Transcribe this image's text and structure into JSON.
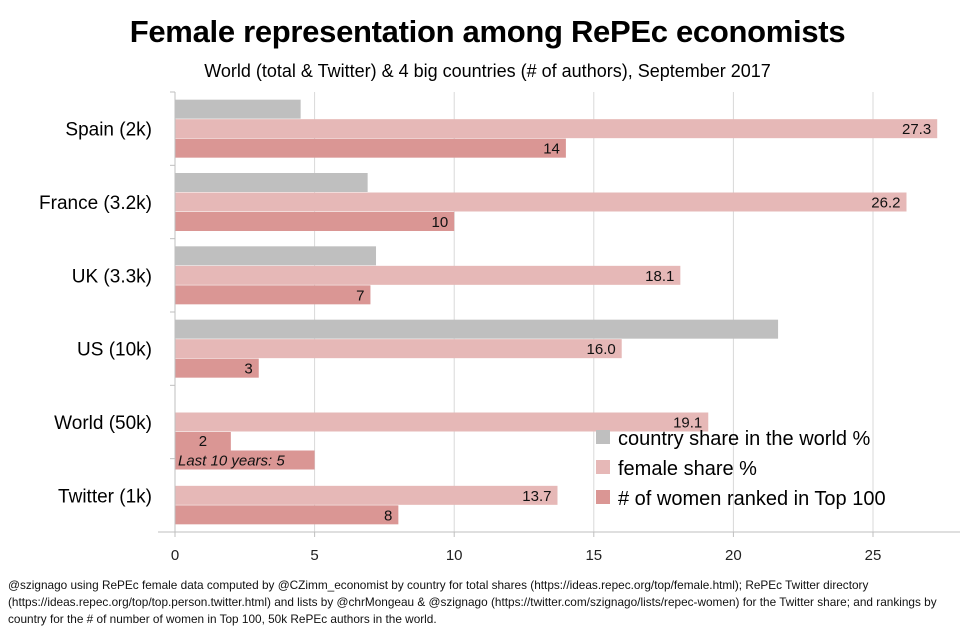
{
  "chart_data": {
    "type": "bar",
    "orientation": "horizontal",
    "title": "Female representation among RePEc economists",
    "subtitle": "World (total & Twitter) & 4 big countries (# of authors), September 2017",
    "categories": [
      "Spain (2k)",
      "France (3.2k)",
      "UK (3.3k)",
      "US (10k)",
      "World (50k)",
      "Twitter (1k)"
    ],
    "series": [
      {
        "name": "country share in the world %",
        "color": "#bfbfbf",
        "values": [
          4.5,
          6.9,
          7.2,
          21.6,
          null,
          null
        ],
        "labels": [
          null,
          null,
          null,
          null,
          null,
          null
        ]
      },
      {
        "name": "female share %",
        "color": "#e6b8b7",
        "values": [
          27.3,
          26.2,
          18.1,
          16.0,
          19.1,
          13.7
        ],
        "labels": [
          "27.3",
          "26.2",
          "18.1",
          "16.0",
          "19.1",
          "13.7"
        ]
      },
      {
        "name": "# of women ranked in Top 100",
        "color": "#da9694",
        "values": [
          14,
          10,
          7,
          3,
          2,
          8
        ],
        "labels": [
          "14",
          "10",
          "7",
          "3",
          "2",
          "8"
        ]
      }
    ],
    "annotations": [
      {
        "category": "World (50k)",
        "text": "Last 10 years: 5",
        "value": 5,
        "style": "italic"
      }
    ],
    "xlabel": "",
    "ylabel": "",
    "xlim": [
      0,
      28
    ],
    "xticks": [
      0,
      5,
      10,
      15,
      20,
      25
    ],
    "grid": true,
    "legend_position": "bottom-right"
  },
  "footnote": "@szignago using RePEc female data computed by @CZimm_economist by country for total shares (https://ideas.repec.org/top/female.html); RePEc Twitter directory (https://ideas.repec.org/top/top.person.twitter.html) and lists by @chrMongeau & @szignago (https://twitter.com/szignago/lists/repec-women) for the Twitter share; and rankings by country for the # of number of women in Top 100, 50k RePEc authors in the world."
}
